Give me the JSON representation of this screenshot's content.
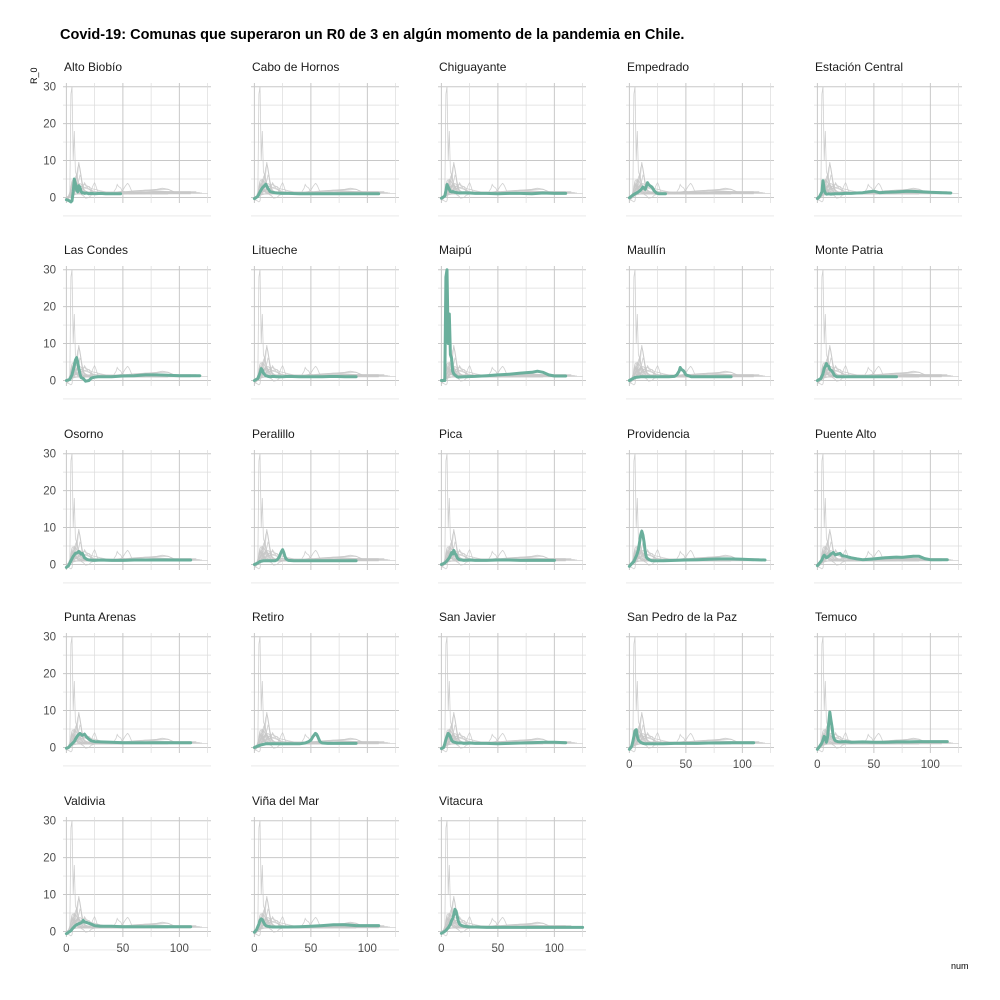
{
  "chart_data": {
    "type": "line",
    "title": "Covid-19: Comunas que superaron un R0 de 3 en algún momento de la pandemia en Chile.",
    "xlabel": "num",
    "ylabel": "R_0",
    "xlim": [
      -3,
      128
    ],
    "ylim": [
      -1.5,
      31
    ],
    "x_ticks": [
      0,
      50,
      100
    ],
    "y_ticks": [
      0,
      10,
      20,
      30
    ],
    "grid": true,
    "highlight_color": "#6aaf9c",
    "background_color": "#c8c8c8",
    "panels": [
      {
        "name": "Alto Biobío",
        "x": [
          0,
          2,
          4,
          5,
          6,
          7,
          8,
          9,
          10,
          11,
          12,
          13,
          14,
          15,
          16,
          18,
          20,
          22,
          25,
          30,
          35,
          40,
          45,
          48
        ],
        "y": [
          -0.6,
          -0.8,
          -1.2,
          -0.9,
          1.5,
          5.0,
          3.8,
          2.0,
          1.5,
          3.2,
          2.8,
          1.6,
          1.2,
          1.3,
          1.1,
          1.2,
          1.0,
          1.1,
          1.0,
          1.1,
          1.0,
          1.0,
          1.0,
          1.0
        ]
      },
      {
        "name": "Cabo de Hornos",
        "x": [
          0,
          3,
          5,
          7,
          9,
          10,
          11,
          12,
          13,
          14,
          16,
          18,
          20,
          25,
          30,
          40,
          50,
          60,
          70,
          80,
          90,
          100,
          110
        ],
        "y": [
          -0.3,
          0.3,
          1.5,
          2.6,
          3.2,
          3.6,
          3.1,
          2.4,
          2.0,
          1.6,
          1.4,
          1.3,
          1.2,
          1.1,
          1.1,
          1.0,
          1.0,
          1.0,
          1.0,
          1.0,
          1.0,
          1.0,
          1.0
        ]
      },
      {
        "name": "Chiguayante",
        "x": [
          0,
          3,
          4,
          5,
          6,
          7,
          8,
          9,
          10,
          12,
          14,
          16,
          20,
          25,
          30,
          40,
          50,
          60,
          70,
          80,
          90,
          100,
          110
        ],
        "y": [
          -0.2,
          0.4,
          1.8,
          3.5,
          2.8,
          2.2,
          1.6,
          1.5,
          1.6,
          1.4,
          1.3,
          1.2,
          1.3,
          1.2,
          1.1,
          1.1,
          1.0,
          1.1,
          1.1,
          1.0,
          1.2,
          1.1,
          1.1
        ]
      },
      {
        "name": "Empedrado",
        "x": [
          0,
          3,
          5,
          8,
          10,
          12,
          14,
          15,
          16,
          17,
          18,
          19,
          20,
          22,
          24,
          26,
          28,
          30,
          32
        ],
        "y": [
          -0.1,
          0.6,
          1.0,
          1.5,
          2.0,
          2.8,
          2.2,
          3.0,
          4.0,
          3.5,
          3.2,
          3.0,
          2.8,
          1.8,
          1.2,
          1.0,
          1.0,
          1.0,
          1.0
        ]
      },
      {
        "name": "Estación Central",
        "x": [
          0,
          2,
          4,
          5,
          6,
          7,
          8,
          10,
          12,
          15,
          20,
          25,
          30,
          35,
          40,
          45,
          50,
          55,
          60,
          70,
          80,
          90,
          100,
          110,
          118
        ],
        "y": [
          -0.3,
          0.3,
          1.5,
          4.5,
          2.0,
          1.2,
          0.9,
          1.0,
          0.9,
          1.0,
          1.0,
          1.1,
          1.1,
          1.2,
          1.3,
          1.5,
          1.7,
          1.3,
          1.4,
          1.5,
          1.7,
          1.6,
          1.4,
          1.3,
          1.2
        ]
      },
      {
        "name": "Las Condes",
        "x": [
          0,
          3,
          5,
          7,
          8,
          9,
          10,
          11,
          12,
          13,
          15,
          17,
          20,
          22,
          25,
          28,
          30,
          40,
          50,
          60,
          70,
          80,
          90,
          100,
          110,
          118
        ],
        "y": [
          0.0,
          0.3,
          1.5,
          4.0,
          5.5,
          6.2,
          5.0,
          3.2,
          1.8,
          0.8,
          0.5,
          -0.2,
          0.0,
          0.6,
          0.9,
          1.0,
          1.0,
          1.0,
          1.2,
          1.3,
          1.5,
          1.5,
          1.4,
          1.3,
          1.3,
          1.3
        ]
      },
      {
        "name": "Litueche",
        "x": [
          0,
          3,
          5,
          6,
          7,
          8,
          9,
          10,
          11,
          12,
          14,
          16,
          20,
          25,
          30,
          40,
          50,
          60,
          70,
          80,
          90
        ],
        "y": [
          0.0,
          0.5,
          2.0,
          3.2,
          2.8,
          2.0,
          1.6,
          1.3,
          1.2,
          1.1,
          1.0,
          1.1,
          1.0,
          1.0,
          1.1,
          1.0,
          1.0,
          1.0,
          1.1,
          1.0,
          1.0
        ]
      },
      {
        "name": "Maipú",
        "x": [
          0,
          2,
          3,
          4,
          5,
          6,
          7,
          8,
          9,
          10,
          11,
          12,
          13,
          14,
          15,
          20,
          30,
          40,
          50,
          60,
          70,
          80,
          85,
          90,
          95,
          100,
          110
        ],
        "y": [
          0,
          0,
          0,
          28,
          30,
          10,
          18,
          7,
          6,
          2.5,
          1.8,
          1.5,
          1.2,
          1.0,
          0.9,
          1.0,
          1.1,
          1.3,
          1.5,
          1.7,
          2.0,
          2.2,
          2.5,
          2.2,
          1.5,
          1.2,
          1.2
        ]
      },
      {
        "name": "Maullín",
        "x": [
          0,
          5,
          10,
          15,
          20,
          25,
          30,
          35,
          40,
          42,
          44,
          45,
          46,
          48,
          50,
          55,
          60,
          70,
          80,
          90
        ],
        "y": [
          0.0,
          0.8,
          1.0,
          1.0,
          1.0,
          1.0,
          1.0,
          1.0,
          1.1,
          1.5,
          2.5,
          3.5,
          3.0,
          2.6,
          1.5,
          1.0,
          1.0,
          1.0,
          1.0,
          1.0
        ]
      },
      {
        "name": "Monte Patria",
        "x": [
          0,
          3,
          5,
          6,
          7,
          8,
          9,
          10,
          11,
          12,
          13,
          14,
          15,
          17,
          20,
          25,
          30,
          40,
          50,
          60,
          70
        ],
        "y": [
          0.0,
          0.5,
          1.8,
          3.2,
          3.8,
          4.6,
          4.0,
          3.8,
          3.0,
          2.8,
          2.5,
          2.0,
          1.4,
          1.0,
          1.0,
          1.0,
          1.0,
          1.0,
          1.0,
          1.0,
          1.0
        ]
      },
      {
        "name": "Osorno",
        "x": [
          0,
          2,
          4,
          6,
          8,
          10,
          11,
          12,
          13,
          14,
          15,
          16,
          18,
          20,
          25,
          30,
          40,
          50,
          60,
          70,
          80,
          90,
          100,
          110
        ],
        "y": [
          -0.8,
          -0.3,
          1.0,
          2.2,
          3.0,
          3.2,
          3.5,
          3.2,
          2.8,
          3.0,
          2.5,
          1.8,
          1.4,
          1.2,
          1.1,
          1.2,
          1.1,
          1.1,
          1.2,
          1.2,
          1.2,
          1.2,
          1.2,
          1.2
        ]
      },
      {
        "name": "Peralillo",
        "x": [
          0,
          3,
          5,
          8,
          10,
          15,
          18,
          20,
          22,
          23,
          24,
          25,
          26,
          27,
          28,
          30,
          35,
          40,
          50,
          60,
          70,
          80,
          90
        ],
        "y": [
          0.0,
          0.4,
          0.8,
          1.0,
          1.0,
          1.0,
          1.0,
          1.2,
          2.0,
          2.8,
          3.5,
          4.0,
          3.2,
          2.2,
          1.5,
          1.1,
          1.0,
          1.0,
          1.0,
          1.0,
          1.0,
          1.0,
          1.0
        ]
      },
      {
        "name": "Pica",
        "x": [
          0,
          3,
          5,
          7,
          8,
          9,
          10,
          11,
          12,
          13,
          14,
          15,
          16,
          18,
          20,
          25,
          30,
          40,
          50,
          60,
          70,
          80,
          90,
          100
        ],
        "y": [
          0.0,
          0.4,
          1.0,
          1.8,
          2.4,
          3.2,
          2.8,
          3.8,
          3.0,
          2.6,
          1.8,
          1.5,
          1.3,
          1.2,
          1.1,
          1.2,
          1.1,
          1.1,
          1.2,
          1.2,
          1.1,
          1.1,
          1.1,
          1.1
        ]
      },
      {
        "name": "Providencia",
        "x": [
          0,
          2,
          4,
          5,
          6,
          7,
          8,
          9,
          10,
          11,
          12,
          13,
          14,
          15,
          16,
          18,
          20,
          22,
          25,
          30,
          40,
          50,
          60,
          70,
          80,
          90,
          100,
          110,
          120
        ],
        "y": [
          -0.5,
          0.2,
          0.8,
          1.5,
          2.2,
          3.0,
          4.0,
          6.0,
          8.0,
          9.0,
          8.0,
          6.0,
          3.5,
          2.0,
          1.6,
          1.2,
          1.0,
          1.0,
          1.0,
          1.0,
          1.1,
          1.2,
          1.3,
          1.4,
          1.5,
          1.5,
          1.4,
          1.3,
          1.2
        ]
      },
      {
        "name": "Puente Alto",
        "x": [
          0,
          2,
          4,
          5,
          6,
          7,
          8,
          10,
          12,
          14,
          16,
          18,
          20,
          22,
          25,
          30,
          35,
          40,
          50,
          60,
          70,
          75,
          80,
          85,
          90,
          95,
          100,
          110,
          115
        ],
        "y": [
          -0.3,
          0.4,
          1.2,
          2.0,
          2.5,
          2.2,
          1.8,
          2.2,
          2.8,
          3.2,
          2.6,
          2.8,
          3.0,
          2.4,
          2.2,
          1.8,
          1.5,
          1.3,
          1.5,
          1.8,
          2.0,
          1.9,
          2.1,
          2.2,
          2.2,
          1.6,
          1.3,
          1.3,
          1.3
        ]
      },
      {
        "name": "Punta Arenas",
        "x": [
          0,
          2,
          3,
          5,
          7,
          8,
          10,
          12,
          14,
          16,
          18,
          20,
          22,
          25,
          30,
          40,
          50,
          60,
          70,
          80,
          90,
          100,
          110
        ],
        "y": [
          -0.2,
          0.0,
          0.4,
          1.0,
          1.6,
          2.2,
          3.2,
          3.8,
          3.3,
          3.6,
          2.8,
          2.2,
          1.8,
          1.6,
          1.5,
          1.4,
          1.3,
          1.3,
          1.3,
          1.3,
          1.3,
          1.3,
          1.3
        ]
      },
      {
        "name": "Retiro",
        "x": [
          0,
          5,
          10,
          15,
          20,
          25,
          30,
          35,
          40,
          45,
          48,
          50,
          52,
          54,
          55,
          56,
          58,
          60,
          65,
          70,
          80,
          90
        ],
        "y": [
          0.0,
          0.6,
          1.0,
          1.0,
          1.0,
          1.0,
          1.0,
          1.0,
          1.0,
          1.2,
          1.6,
          2.0,
          3.0,
          3.8,
          3.6,
          3.0,
          1.6,
          1.2,
          1.1,
          1.1,
          1.1,
          1.1
        ]
      },
      {
        "name": "San Javier",
        "x": [
          0,
          2,
          3,
          4,
          5,
          6,
          7,
          8,
          9,
          10,
          12,
          14,
          16,
          18,
          20,
          25,
          30,
          40,
          50,
          60,
          70,
          80,
          90,
          100,
          110
        ],
        "y": [
          -0.3,
          0.0,
          1.0,
          2.2,
          3.0,
          3.8,
          3.5,
          2.8,
          2.0,
          1.6,
          1.4,
          1.2,
          1.2,
          1.2,
          1.1,
          1.2,
          1.1,
          1.1,
          1.0,
          1.1,
          1.2,
          1.3,
          1.4,
          1.4,
          1.3
        ]
      },
      {
        "name": "San Pedro de la Paz",
        "x": [
          0,
          2,
          3,
          4,
          5,
          6,
          7,
          8,
          9,
          10,
          11,
          12,
          14,
          16,
          18,
          20,
          25,
          30,
          40,
          50,
          60,
          70,
          80,
          90,
          100,
          110
        ],
        "y": [
          -0.5,
          0.3,
          1.5,
          3.0,
          4.5,
          4.8,
          3.0,
          2.0,
          1.6,
          1.4,
          1.2,
          1.1,
          1.0,
          1.0,
          1.0,
          1.0,
          1.0,
          1.0,
          1.1,
          1.1,
          1.1,
          1.2,
          1.2,
          1.3,
          1.3,
          1.3
        ]
      },
      {
        "name": "Temuco",
        "x": [
          0,
          2,
          4,
          5,
          6,
          7,
          8,
          9,
          10,
          11,
          12,
          13,
          14,
          15,
          16,
          18,
          20,
          25,
          30,
          40,
          50,
          60,
          70,
          80,
          90,
          100,
          110,
          115
        ],
        "y": [
          -0.5,
          0.3,
          1.2,
          2.0,
          3.0,
          2.6,
          1.4,
          2.8,
          6.5,
          9.6,
          7.5,
          5.5,
          3.0,
          2.2,
          1.8,
          1.6,
          1.5,
          1.6,
          1.4,
          1.5,
          1.4,
          1.4,
          1.5,
          1.5,
          1.6,
          1.6,
          1.6,
          1.6
        ]
      },
      {
        "name": "Valdivia",
        "x": [
          0,
          2,
          4,
          5,
          6,
          8,
          10,
          12,
          14,
          15,
          16,
          18,
          20,
          22,
          25,
          30,
          40,
          50,
          60,
          70,
          80,
          90,
          100,
          110
        ],
        "y": [
          -0.6,
          -0.2,
          0.2,
          0.6,
          1.0,
          1.6,
          2.0,
          2.2,
          2.5,
          3.0,
          2.6,
          2.4,
          2.2,
          2.0,
          1.6,
          1.4,
          1.4,
          1.3,
          1.3,
          1.3,
          1.3,
          1.3,
          1.3,
          1.3
        ]
      },
      {
        "name": "Viña del Mar",
        "x": [
          0,
          2,
          4,
          5,
          6,
          7,
          8,
          9,
          10,
          12,
          14,
          16,
          20,
          25,
          30,
          40,
          50,
          60,
          70,
          80,
          90,
          100,
          110
        ],
        "y": [
          -0.2,
          0.5,
          2.0,
          3.0,
          3.4,
          3.2,
          2.6,
          2.0,
          1.6,
          1.4,
          1.3,
          1.2,
          1.2,
          1.2,
          1.2,
          1.3,
          1.4,
          1.6,
          1.8,
          1.8,
          1.6,
          1.6,
          1.6
        ]
      },
      {
        "name": "Vitacura",
        "x": [
          0,
          2,
          4,
          6,
          8,
          9,
          10,
          11,
          12,
          13,
          14,
          15,
          16,
          18,
          20,
          25,
          30,
          40,
          50,
          60,
          70,
          80,
          90,
          100,
          110,
          125
        ],
        "y": [
          -0.5,
          -0.2,
          0.3,
          1.0,
          2.0,
          3.0,
          3.5,
          4.5,
          6.0,
          5.5,
          4.2,
          2.8,
          2.0,
          1.6,
          1.4,
          1.2,
          1.2,
          1.1,
          1.1,
          1.1,
          1.1,
          1.1,
          1.1,
          1.1,
          1.1,
          1.1
        ]
      }
    ]
  }
}
